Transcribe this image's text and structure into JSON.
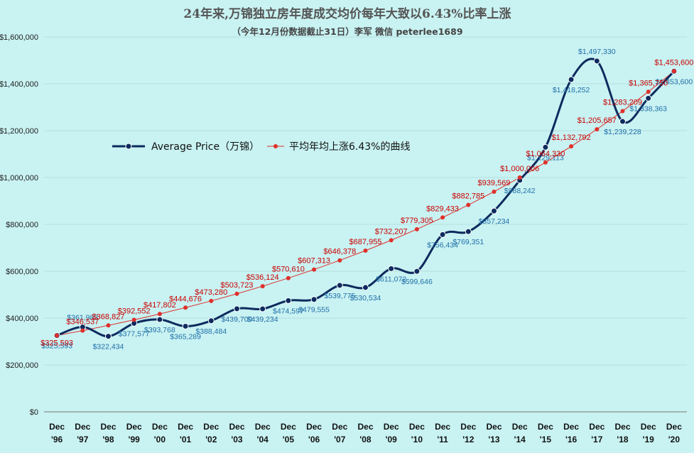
{
  "chart_data": {
    "type": "line",
    "title": "24年来,万锦独立房年度成交均价每年大致以6.43%比率上涨",
    "subtitle": "（今年12月份数据截止31日）李军 微信 peterlee1689",
    "categories": [
      [
        "Dec",
        "'96"
      ],
      [
        "Dec",
        "'97"
      ],
      [
        "Dec",
        "'98"
      ],
      [
        "Dec",
        "'99"
      ],
      [
        "Dec",
        "'00"
      ],
      [
        "Dec",
        "'01"
      ],
      [
        "Dec",
        "'02"
      ],
      [
        "Dec",
        "'03"
      ],
      [
        "Dec",
        "'04"
      ],
      [
        "Dec",
        "'05"
      ],
      [
        "Dec",
        "'06"
      ],
      [
        "Dec",
        "'07"
      ],
      [
        "Dec",
        "'08"
      ],
      [
        "Dec",
        "'09"
      ],
      [
        "Dec",
        "'10"
      ],
      [
        "Dec",
        "'11"
      ],
      [
        "Dec",
        "'12"
      ],
      [
        "Dec",
        "'13"
      ],
      [
        "Dec",
        "'14"
      ],
      [
        "Dec",
        "'15"
      ],
      [
        "Dec",
        "'16"
      ],
      [
        "Dec",
        "'17"
      ],
      [
        "Dec",
        "'18"
      ],
      [
        "Dec",
        "'19"
      ],
      [
        "Dec",
        "'20"
      ]
    ],
    "ylim": [
      0,
      1600000
    ],
    "yticks": [
      0,
      200000,
      400000,
      600000,
      800000,
      1000000,
      1200000,
      1400000,
      1600000
    ],
    "ytick_labels": [
      "$0",
      "$200,000",
      "$400,000",
      "$600,000",
      "$800,000",
      "$1,000,000",
      "$1,200,000",
      "$1,400,000",
      "$1,600,000"
    ],
    "grid": true,
    "legend_position": "top-left",
    "series": [
      {
        "name": "Average Price（万锦）",
        "color": "#0d2b5e",
        "label_color": "#1f6fa8",
        "values": [
          325593,
          361983,
          322434,
          377577,
          393768,
          365289,
          388484,
          439700,
          439234,
          474597,
          479555,
          539775,
          530534,
          611072,
          599646,
          756434,
          769351,
          857234,
          988242,
          1129113,
          1418252,
          1497330,
          1239228,
          1338363,
          1453600
        ],
        "labels": [
          "$325,593",
          "$361,983",
          "$322,434",
          "$377,577",
          "$393,768",
          "$365,289",
          "$388,484",
          "$439,700",
          "$439,234",
          "$474,597",
          "$479,555",
          "$539,775",
          "$530,534",
          "$611,072",
          "$599,646",
          "$756,434",
          "$769,351",
          "$857,234",
          "$988,242",
          "$1,129,113",
          "$1,418,252",
          "$1,497,330",
          "$1,239,228",
          "$1,338,363",
          "$1,453,600"
        ]
      },
      {
        "name": "平均年均上涨6.43%的曲线",
        "color": "#e0302a",
        "label_color": "#cc0000",
        "values": [
          325593,
          346537,
          368827,
          392552,
          417802,
          444676,
          473280,
          503723,
          536124,
          570610,
          607313,
          646378,
          687955,
          732207,
          779305,
          829433,
          882785,
          939569,
          1000006,
          1064330,
          1132792,
          1205657,
          1283209,
          1365750,
          1453600
        ],
        "labels": [
          "$325,593",
          "$346,537",
          "$368,827",
          "$392,552",
          "$417,802",
          "$444,676",
          "$473,280",
          "$503,723",
          "$536,124",
          "$570,610",
          "$607,313",
          "$646,378",
          "$687,955",
          "$732,207",
          "$779,305",
          "$829,433",
          "$882,785",
          "$939,569",
          "$1,000,006",
          "$1,064,330",
          "$1,132,792",
          "$1,205,657",
          "$1,283,209",
          "$1,365,750",
          "$1,453,600"
        ]
      }
    ]
  }
}
